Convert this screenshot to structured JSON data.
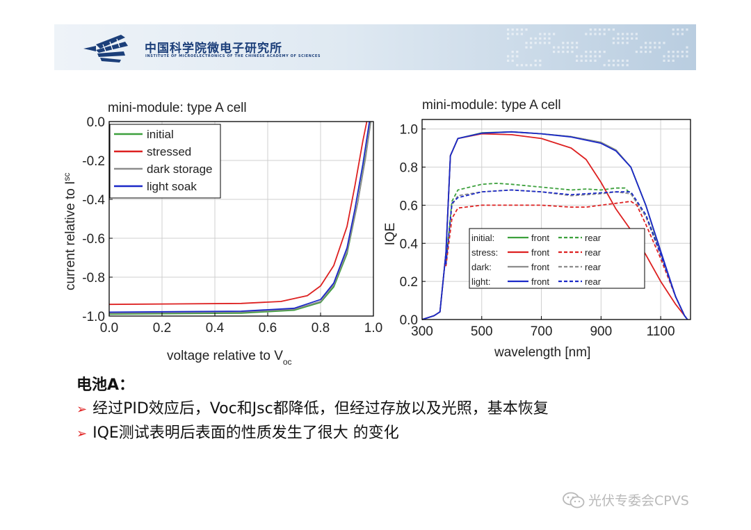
{
  "header": {
    "institute_cn": "中国科学院微电子研究所",
    "institute_en": "INSTITUTE OF MICROELECTRONICS OF THE CHINESE ACADEMY OF SCIENCES"
  },
  "chart_data": [
    {
      "type": "line",
      "title": "mini-module: type A cell",
      "xlabel": "voltage relative to V",
      "xlabel_sub": "oc",
      "ylabel": "current relative to I",
      "ylabel_sub": "sc",
      "xlim": [
        0.0,
        1.0
      ],
      "ylim": [
        -1.0,
        0.0
      ],
      "xticks": [
        "0.0",
        "0.2",
        "0.4",
        "0.6",
        "0.8",
        "1.0"
      ],
      "yticks": [
        "0.0",
        "-0.2",
        "-0.4",
        "-0.6",
        "-0.8",
        "-1.0"
      ],
      "grid": true,
      "legend_position": "top-left",
      "series": [
        {
          "name": "initial",
          "color": "#3ca03c",
          "points": [
            [
              0,
              -0.99
            ],
            [
              0.5,
              -0.985
            ],
            [
              0.7,
              -0.97
            ],
            [
              0.8,
              -0.93
            ],
            [
              0.85,
              -0.85
            ],
            [
              0.9,
              -0.68
            ],
            [
              0.94,
              -0.42
            ],
            [
              0.97,
              -0.18
            ],
            [
              0.99,
              0.0
            ]
          ]
        },
        {
          "name": "stressed",
          "color": "#dd2020",
          "points": [
            [
              0,
              -0.94
            ],
            [
              0.5,
              -0.935
            ],
            [
              0.65,
              -0.925
            ],
            [
              0.75,
              -0.895
            ],
            [
              0.8,
              -0.845
            ],
            [
              0.85,
              -0.74
            ],
            [
              0.9,
              -0.54
            ],
            [
              0.93,
              -0.33
            ],
            [
              0.96,
              -0.1
            ],
            [
              0.975,
              0.0
            ]
          ]
        },
        {
          "name": "dark storage",
          "color": "#8c8c8c",
          "points": [
            [
              0,
              -0.985
            ],
            [
              0.5,
              -0.98
            ],
            [
              0.7,
              -0.965
            ],
            [
              0.8,
              -0.925
            ],
            [
              0.85,
              -0.84
            ],
            [
              0.9,
              -0.67
            ],
            [
              0.94,
              -0.42
            ],
            [
              0.97,
              -0.19
            ],
            [
              0.99,
              0.0
            ]
          ]
        },
        {
          "name": "light soak",
          "color": "#1a28c8",
          "points": [
            [
              0,
              -0.98
            ],
            [
              0.5,
              -0.975
            ],
            [
              0.7,
              -0.96
            ],
            [
              0.8,
              -0.915
            ],
            [
              0.85,
              -0.83
            ],
            [
              0.9,
              -0.65
            ],
            [
              0.93,
              -0.45
            ],
            [
              0.96,
              -0.22
            ],
            [
              0.985,
              0.0
            ]
          ]
        }
      ]
    },
    {
      "type": "line",
      "title": "mini-module: type A cell",
      "xlabel": "wavelength [nm]",
      "ylabel": "IQE",
      "xlim": [
        300,
        1200
      ],
      "ylim": [
        0.0,
        1.05
      ],
      "xticks": [
        "300",
        "500",
        "700",
        "900",
        "1100"
      ],
      "yticks": [
        "0.0",
        "0.2",
        "0.4",
        "0.6",
        "0.8",
        "1.0"
      ],
      "grid": true,
      "legend_position": "bottom-left",
      "legend": {
        "rows": [
          {
            "label": "initial:",
            "color": "#3ca03c",
            "front": "front",
            "rear": "rear"
          },
          {
            "label": "stress:",
            "color": "#dd2020",
            "front": "front",
            "rear": "rear"
          },
          {
            "label": "dark:",
            "color": "#8c8c8c",
            "front": "front",
            "rear": "rear"
          },
          {
            "label": "light:",
            "color": "#1a28c8",
            "front": "front",
            "rear": "rear"
          }
        ]
      },
      "series": [
        {
          "name": "initial front",
          "color": "#3ca03c",
          "dash": false,
          "points": [
            [
              300,
              0.0
            ],
            [
              340,
              0.02
            ],
            [
              360,
              0.04
            ],
            [
              380,
              0.35
            ],
            [
              395,
              0.86
            ],
            [
              420,
              0.95
            ],
            [
              500,
              0.98
            ],
            [
              600,
              0.985
            ],
            [
              700,
              0.975
            ],
            [
              800,
              0.96
            ],
            [
              900,
              0.93
            ],
            [
              950,
              0.89
            ],
            [
              1000,
              0.8
            ],
            [
              1050,
              0.6
            ],
            [
              1100,
              0.35
            ],
            [
              1150,
              0.12
            ],
            [
              1180,
              0.02
            ],
            [
              1190,
              0.0
            ]
          ]
        },
        {
          "name": "initial rear",
          "color": "#3ca03c",
          "dash": true,
          "points": [
            [
              380,
              0.3
            ],
            [
              400,
              0.62
            ],
            [
              420,
              0.68
            ],
            [
              500,
              0.71
            ],
            [
              550,
              0.715
            ],
            [
              600,
              0.71
            ],
            [
              700,
              0.695
            ],
            [
              800,
              0.68
            ],
            [
              850,
              0.685
            ],
            [
              900,
              0.68
            ],
            [
              950,
              0.69
            ],
            [
              980,
              0.69
            ],
            [
              1000,
              0.66
            ],
            [
              1050,
              0.55
            ],
            [
              1100,
              0.35
            ],
            [
              1150,
              0.12
            ],
            [
              1180,
              0.02
            ],
            [
              1190,
              0.0
            ]
          ]
        },
        {
          "name": "stress front",
          "color": "#dd2020",
          "dash": false,
          "points": [
            [
              300,
              0.0
            ],
            [
              340,
              0.02
            ],
            [
              360,
              0.04
            ],
            [
              380,
              0.35
            ],
            [
              395,
              0.86
            ],
            [
              420,
              0.95
            ],
            [
              500,
              0.975
            ],
            [
              600,
              0.97
            ],
            [
              700,
              0.95
            ],
            [
              800,
              0.9
            ],
            [
              850,
              0.84
            ],
            [
              900,
              0.72
            ],
            [
              950,
              0.58
            ],
            [
              1000,
              0.47
            ],
            [
              1050,
              0.34
            ],
            [
              1100,
              0.2
            ],
            [
              1150,
              0.08
            ],
            [
              1180,
              0.02
            ],
            [
              1190,
              0.0
            ]
          ]
        },
        {
          "name": "stress rear",
          "color": "#dd2020",
          "dash": true,
          "points": [
            [
              380,
              0.28
            ],
            [
              400,
              0.53
            ],
            [
              420,
              0.585
            ],
            [
              500,
              0.6
            ],
            [
              600,
              0.6
            ],
            [
              700,
              0.6
            ],
            [
              800,
              0.59
            ],
            [
              850,
              0.59
            ],
            [
              900,
              0.6
            ],
            [
              950,
              0.61
            ],
            [
              1000,
              0.62
            ],
            [
              1020,
              0.6
            ],
            [
              1050,
              0.5
            ],
            [
              1100,
              0.32
            ],
            [
              1150,
              0.12
            ],
            [
              1180,
              0.02
            ],
            [
              1190,
              0.0
            ]
          ]
        },
        {
          "name": "dark front",
          "color": "#8c8c8c",
          "dash": false,
          "points": [
            [
              300,
              0.0
            ],
            [
              340,
              0.02
            ],
            [
              360,
              0.04
            ],
            [
              380,
              0.35
            ],
            [
              395,
              0.86
            ],
            [
              420,
              0.95
            ],
            [
              500,
              0.978
            ],
            [
              600,
              0.985
            ],
            [
              700,
              0.975
            ],
            [
              800,
              0.96
            ],
            [
              900,
              0.93
            ],
            [
              950,
              0.89
            ],
            [
              1000,
              0.8
            ],
            [
              1050,
              0.6
            ],
            [
              1100,
              0.35
            ],
            [
              1150,
              0.12
            ],
            [
              1180,
              0.02
            ],
            [
              1190,
              0.0
            ]
          ]
        },
        {
          "name": "dark rear",
          "color": "#8c8c8c",
          "dash": true,
          "points": [
            [
              380,
              0.29
            ],
            [
              400,
              0.6
            ],
            [
              420,
              0.65
            ],
            [
              500,
              0.67
            ],
            [
              600,
              0.68
            ],
            [
              700,
              0.67
            ],
            [
              800,
              0.65
            ],
            [
              900,
              0.66
            ],
            [
              950,
              0.67
            ],
            [
              1000,
              0.66
            ],
            [
              1050,
              0.54
            ],
            [
              1100,
              0.34
            ],
            [
              1150,
              0.12
            ],
            [
              1180,
              0.02
            ],
            [
              1190,
              0.0
            ]
          ]
        },
        {
          "name": "light front",
          "color": "#1a28c8",
          "dash": false,
          "points": [
            [
              300,
              0.0
            ],
            [
              340,
              0.02
            ],
            [
              360,
              0.04
            ],
            [
              380,
              0.35
            ],
            [
              395,
              0.86
            ],
            [
              420,
              0.95
            ],
            [
              500,
              0.978
            ],
            [
              600,
              0.985
            ],
            [
              700,
              0.975
            ],
            [
              800,
              0.958
            ],
            [
              900,
              0.925
            ],
            [
              950,
              0.885
            ],
            [
              1000,
              0.8
            ],
            [
              1050,
              0.6
            ],
            [
              1100,
              0.36
            ],
            [
              1150,
              0.12
            ],
            [
              1180,
              0.02
            ],
            [
              1190,
              0.0
            ]
          ]
        },
        {
          "name": "light rear",
          "color": "#1a28c8",
          "dash": true,
          "points": [
            [
              380,
              0.29
            ],
            [
              400,
              0.61
            ],
            [
              420,
              0.64
            ],
            [
              500,
              0.67
            ],
            [
              600,
              0.68
            ],
            [
              700,
              0.67
            ],
            [
              800,
              0.655
            ],
            [
              900,
              0.665
            ],
            [
              950,
              0.67
            ],
            [
              1000,
              0.67
            ],
            [
              1050,
              0.55
            ],
            [
              1100,
              0.34
            ],
            [
              1150,
              0.12
            ],
            [
              1180,
              0.02
            ],
            [
              1190,
              0.0
            ]
          ]
        }
      ]
    }
  ],
  "notes": {
    "title": "电池A：",
    "bullet_symbol": "➢",
    "items": [
      "经过PID效应后，Voc和Jsc都降低，但经过存放以及光照，基本恢复",
      "IQE测试表明后表面的性质发生了很大 的变化"
    ]
  },
  "watermark": "光伏专委会CPVS"
}
